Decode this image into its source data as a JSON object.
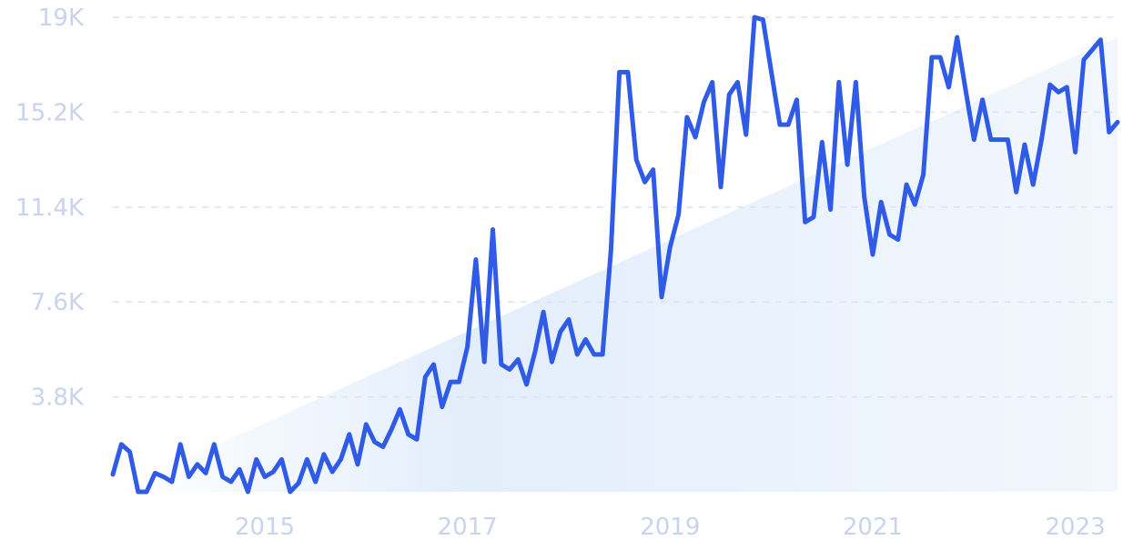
{
  "chart_data": {
    "type": "line",
    "title": "",
    "xlabel": "",
    "ylabel": "",
    "ylim": [
      0,
      19000
    ],
    "xlim": [
      "2014-01",
      "2023-12"
    ],
    "grid": true,
    "y_ticks": [
      {
        "value": 3800,
        "label": "3.8K"
      },
      {
        "value": 7600,
        "label": "7.6K"
      },
      {
        "value": 11400,
        "label": "11.4K"
      },
      {
        "value": 15200,
        "label": "15.2K"
      },
      {
        "value": 19000,
        "label": "19K"
      }
    ],
    "x_ticks": [
      {
        "value": "2015-07",
        "label": "2015"
      },
      {
        "value": "2017-07",
        "label": "2017"
      },
      {
        "value": "2019-07",
        "label": "2019"
      },
      {
        "value": "2021-07",
        "label": "2021"
      },
      {
        "value": "2023-07",
        "label": "2023"
      }
    ],
    "colors": {
      "line": "#2f5be7",
      "trend_fill": "#e8f1fc",
      "tick_text": "#c9d3ee",
      "grid": "#d9e3f1"
    },
    "series": [
      {
        "points": [
          [
            "2014-01",
            700
          ],
          [
            "2014-02",
            1900
          ],
          [
            "2014-03",
            1600
          ],
          [
            "2014-04",
            0
          ],
          [
            "2014-05",
            0
          ],
          [
            "2014-06",
            750
          ],
          [
            "2014-07",
            600
          ],
          [
            "2014-08",
            400
          ],
          [
            "2014-09",
            1900
          ],
          [
            "2014-10",
            600
          ],
          [
            "2014-11",
            1100
          ],
          [
            "2014-12",
            750
          ],
          [
            "2015-01",
            1900
          ],
          [
            "2015-02",
            600
          ],
          [
            "2015-03",
            400
          ],
          [
            "2015-04",
            900
          ],
          [
            "2015-05",
            0
          ],
          [
            "2015-06",
            1300
          ],
          [
            "2015-07",
            600
          ],
          [
            "2015-08",
            800
          ],
          [
            "2015-09",
            1300
          ],
          [
            "2015-10",
            0
          ],
          [
            "2015-11",
            350
          ],
          [
            "2015-12",
            1300
          ],
          [
            "2016-01",
            400
          ],
          [
            "2016-02",
            1500
          ],
          [
            "2016-03",
            800
          ],
          [
            "2016-04",
            1300
          ],
          [
            "2016-05",
            2300
          ],
          [
            "2016-06",
            1100
          ],
          [
            "2016-07",
            2700
          ],
          [
            "2016-08",
            2000
          ],
          [
            "2016-09",
            1800
          ],
          [
            "2016-10",
            2500
          ],
          [
            "2016-11",
            3300
          ],
          [
            "2016-12",
            2300
          ],
          [
            "2017-01",
            2100
          ],
          [
            "2017-02",
            4600
          ],
          [
            "2017-03",
            5100
          ],
          [
            "2017-04",
            3400
          ],
          [
            "2017-05",
            4400
          ],
          [
            "2017-06",
            4400
          ],
          [
            "2017-07",
            5800
          ],
          [
            "2017-08",
            9300
          ],
          [
            "2017-09",
            5200
          ],
          [
            "2017-10",
            10500
          ],
          [
            "2017-11",
            5100
          ],
          [
            "2017-12",
            4900
          ],
          [
            "2018-01",
            5300
          ],
          [
            "2018-02",
            4300
          ],
          [
            "2018-03",
            5600
          ],
          [
            "2018-04",
            7200
          ],
          [
            "2018-05",
            5200
          ],
          [
            "2018-06",
            6400
          ],
          [
            "2018-07",
            6900
          ],
          [
            "2018-08",
            5500
          ],
          [
            "2018-09",
            6100
          ],
          [
            "2018-10",
            5500
          ],
          [
            "2018-11",
            5500
          ],
          [
            "2018-12",
            9700
          ],
          [
            "2019-01",
            16800
          ],
          [
            "2019-02",
            16800
          ],
          [
            "2019-03",
            13300
          ],
          [
            "2019-04",
            12400
          ],
          [
            "2019-05",
            12900
          ],
          [
            "2019-06",
            7800
          ],
          [
            "2019-07",
            9800
          ],
          [
            "2019-08",
            11100
          ],
          [
            "2019-09",
            15000
          ],
          [
            "2019-10",
            14200
          ],
          [
            "2019-11",
            15600
          ],
          [
            "2019-12",
            16400
          ],
          [
            "2020-01",
            12200
          ],
          [
            "2020-02",
            15900
          ],
          [
            "2020-03",
            16400
          ],
          [
            "2020-04",
            14300
          ],
          [
            "2020-05",
            19000
          ],
          [
            "2020-06",
            18900
          ],
          [
            "2020-07",
            16800
          ],
          [
            "2020-08",
            14700
          ],
          [
            "2020-09",
            14700
          ],
          [
            "2020-10",
            15700
          ],
          [
            "2020-11",
            10800
          ],
          [
            "2020-12",
            11000
          ],
          [
            "2021-01",
            14000
          ],
          [
            "2021-02",
            11300
          ],
          [
            "2021-03",
            16400
          ],
          [
            "2021-04",
            13100
          ],
          [
            "2021-05",
            16400
          ],
          [
            "2021-06",
            11800
          ],
          [
            "2021-07",
            9500
          ],
          [
            "2021-08",
            11600
          ],
          [
            "2021-09",
            10300
          ],
          [
            "2021-10",
            10100
          ],
          [
            "2021-11",
            12300
          ],
          [
            "2021-12",
            11500
          ],
          [
            "2022-01",
            12700
          ],
          [
            "2022-02",
            17400
          ],
          [
            "2022-03",
            17400
          ],
          [
            "2022-04",
            16200
          ],
          [
            "2022-05",
            18200
          ],
          [
            "2022-06",
            16100
          ],
          [
            "2022-07",
            14100
          ],
          [
            "2022-08",
            15700
          ],
          [
            "2022-09",
            14100
          ],
          [
            "2022-10",
            14100
          ],
          [
            "2022-11",
            14100
          ],
          [
            "2022-12",
            12000
          ],
          [
            "2023-01",
            13900
          ],
          [
            "2023-02",
            12300
          ],
          [
            "2023-03",
            14100
          ],
          [
            "2023-04",
            16300
          ],
          [
            "2023-05",
            16000
          ],
          [
            "2023-06",
            16200
          ],
          [
            "2023-07",
            13600
          ],
          [
            "2023-08",
            17300
          ],
          [
            "2023-09",
            17700
          ],
          [
            "2023-10",
            18100
          ],
          [
            "2023-11",
            14400
          ],
          [
            "2023-12",
            14800
          ]
        ]
      }
    ],
    "trend": {
      "start": [
        "2014-01",
        0
      ],
      "end": [
        "2023-12",
        18200
      ]
    }
  }
}
